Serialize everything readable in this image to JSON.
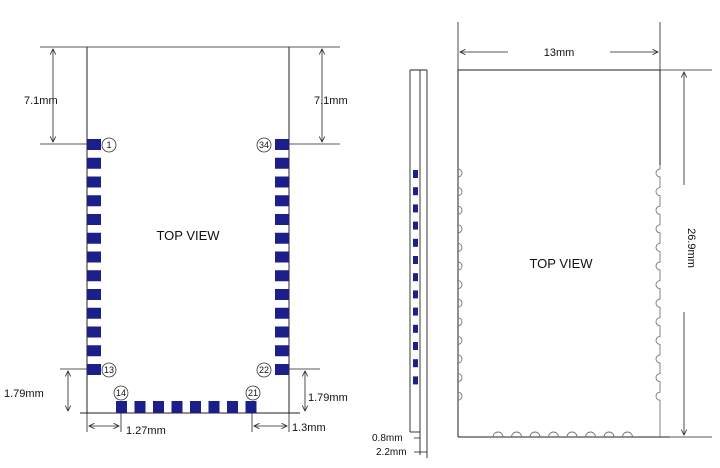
{
  "left_view": {
    "title": "TOP VIEW",
    "dim_top_left": "7.1mm",
    "dim_top_right": "7.1mm",
    "dim_bottom_left": "1.79mm",
    "dim_bottom_right": "1.79mm",
    "dim_pitch": "1.27mm",
    "dim_edge": "1.3mm",
    "pins": {
      "p1": "1",
      "p13": "13",
      "p14": "14",
      "p21": "21",
      "p22": "22",
      "p34": "34"
    },
    "left_pin_count": 13,
    "right_pin_count": 13,
    "bottom_pin_count": 8
  },
  "side_view": {
    "dim_thickness_pcb": "0.8mm",
    "dim_thickness_total": "2.2mm",
    "pad_count": 13
  },
  "right_view": {
    "title": "TOP VIEW",
    "dim_width": "13mm",
    "dim_height": "26.9mm"
  },
  "colors": {
    "pad": "#1c1f8a",
    "line": "#222222",
    "castellation": "#888888"
  }
}
